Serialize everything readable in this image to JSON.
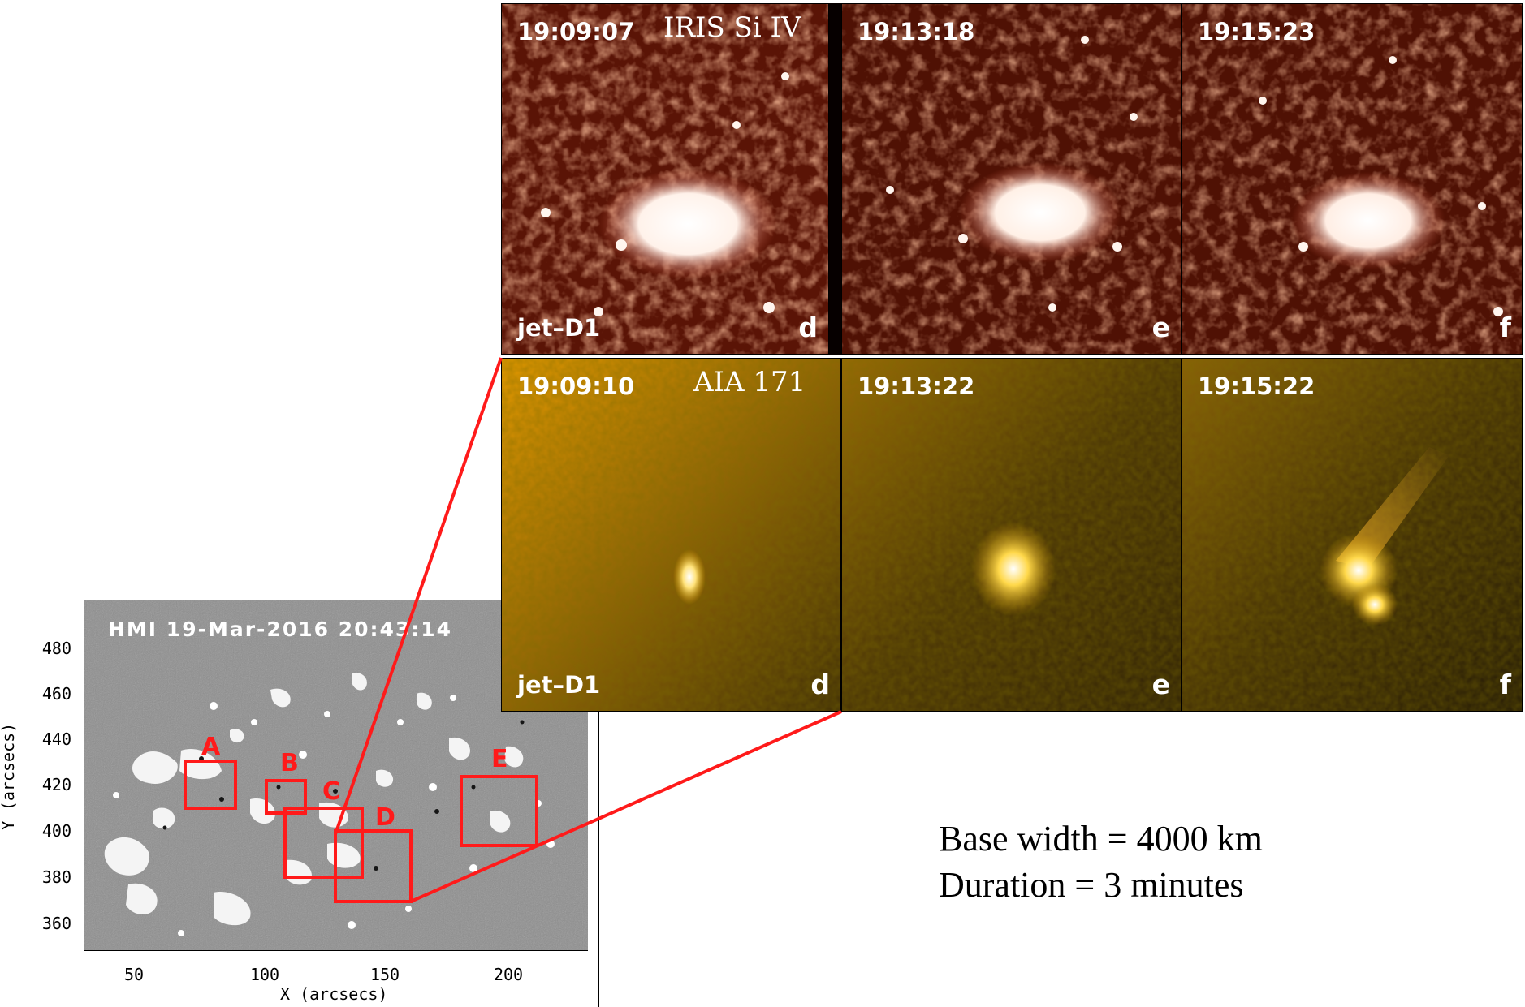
{
  "hmi": {
    "title": "HMI  19-Mar-2016  20:43:14",
    "xlabel": "X (arcsecs)",
    "ylabel": "Y (arcsecs)",
    "xticks": [
      "50",
      "100",
      "150",
      "200"
    ],
    "yticks": [
      "480",
      "460",
      "440",
      "420",
      "400",
      "380",
      "360"
    ],
    "regions": [
      "A",
      "B",
      "C",
      "D",
      "E"
    ]
  },
  "iris": {
    "instrument": "IRIS Si IV",
    "event": "jet–D1",
    "panels": [
      {
        "time": "19:09:07",
        "letter": "d"
      },
      {
        "time": "19:13:18",
        "letter": "e"
      },
      {
        "time": "19:15:23",
        "letter": "f"
      }
    ]
  },
  "aia": {
    "instrument": "AIA 171",
    "event": "jet–D1",
    "panels": [
      {
        "time": "19:09:10",
        "letter": "d"
      },
      {
        "time": "19:13:22",
        "letter": "e"
      },
      {
        "time": "19:15:22",
        "letter": "f"
      }
    ]
  },
  "summary": {
    "base_width": "Base width = 4000 km",
    "duration": "Duration = 3 minutes"
  },
  "colors": {
    "box": "#ff1a1a",
    "iris_bg": "#4a0d00",
    "aia_bg": "#8a5a00"
  }
}
